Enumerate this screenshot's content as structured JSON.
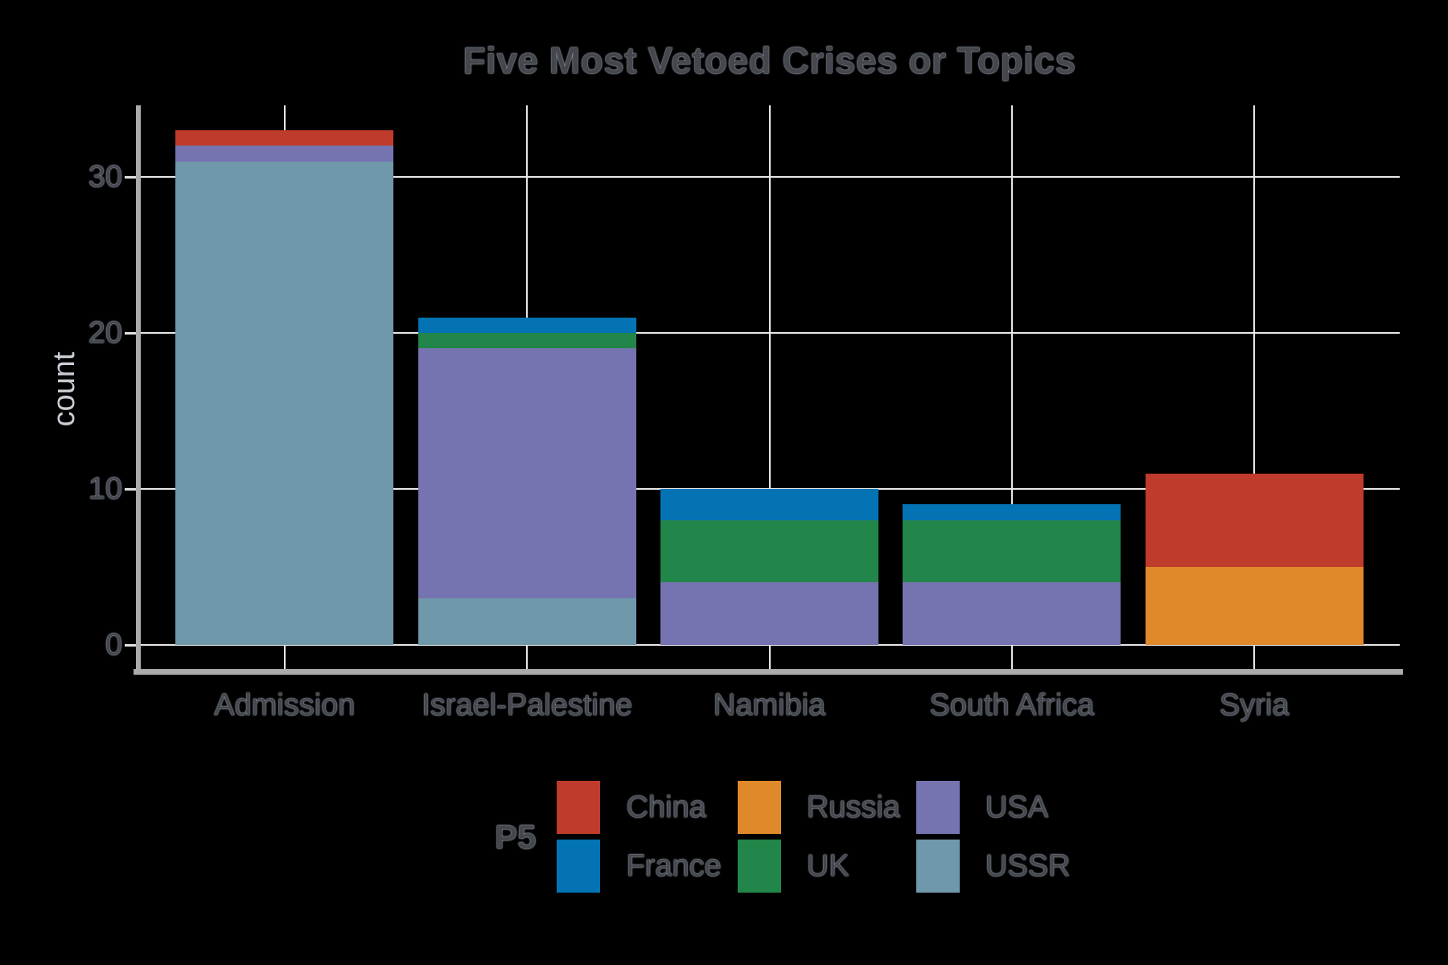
{
  "chart_data": {
    "type": "bar",
    "stacked": true,
    "title": "Five Most Vetoed Crises or Topics",
    "xlabel": "",
    "ylabel": "count",
    "legend_title": "P5",
    "legend_position": "bottom",
    "grid": true,
    "categories": [
      "Admission",
      "Israel-Palestine",
      "Namibia",
      "South Africa",
      "Syria"
    ],
    "stack_order_bottom_to_top": [
      "USSR",
      "USA",
      "UK",
      "Russia",
      "France",
      "China"
    ],
    "series": [
      {
        "name": "China",
        "color": "#BF3B2B",
        "values": [
          1,
          0,
          0,
          0,
          6
        ]
      },
      {
        "name": "France",
        "color": "#0473B4",
        "values": [
          0,
          1,
          2,
          1,
          0
        ]
      },
      {
        "name": "Russia",
        "color": "#E0892A",
        "values": [
          0,
          0,
          0,
          0,
          5
        ]
      },
      {
        "name": "UK",
        "color": "#228549",
        "values": [
          0,
          1,
          4,
          4,
          0
        ]
      },
      {
        "name": "USA",
        "color": "#7674B0",
        "values": [
          1,
          16,
          4,
          4,
          0
        ]
      },
      {
        "name": "USSR",
        "color": "#6F99AB",
        "values": [
          31,
          3,
          0,
          0,
          0
        ]
      }
    ],
    "totals": [
      33,
      21,
      10,
      9,
      11
    ],
    "yticks": [
      0,
      10,
      20,
      30
    ],
    "ylim": [
      0,
      34.65
    ]
  },
  "colors": {
    "background": "#000000",
    "gridline": "#E8E8E8",
    "axis_line": "#ABABAB",
    "text_dark": "#45474D",
    "text_light": "#C9CDD4"
  }
}
